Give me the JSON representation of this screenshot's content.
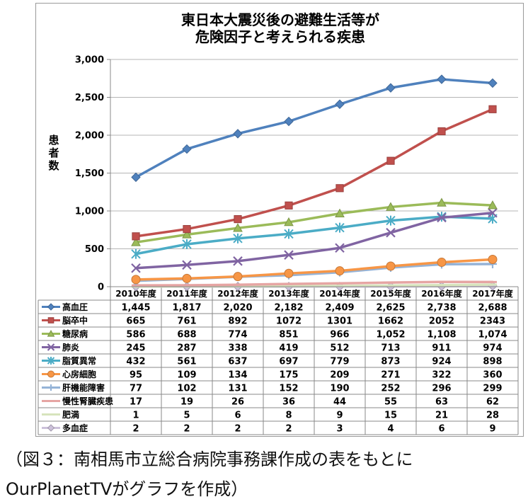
{
  "chart_data": {
    "type": "line",
    "title_lines": [
      "東日本大震災後の避難生活等が",
      "危険因子と考えられる疾患"
    ],
    "ylabel": "患者数",
    "ylim": [
      0,
      3000
    ],
    "yticks": [
      "0",
      "500",
      "1,000",
      "1,500",
      "2,000",
      "2,500",
      "3,000"
    ],
    "categories": [
      "2010年度",
      "2011年度",
      "2012年度",
      "2013年度",
      "2014年度",
      "2015年度",
      "2016年度",
      "2017年度"
    ],
    "grid": "horizontal",
    "legend": "data-table-below",
    "series": [
      {
        "name": "高血圧",
        "color": "#4f81bd",
        "marker": "diamond",
        "values": [
          1445,
          1817,
          2020,
          2182,
          2409,
          2625,
          2738,
          2688
        ],
        "labels": [
          "1,445",
          "1,817",
          "2,020",
          "2,182",
          "2,409",
          "2,625",
          "2,738",
          "2,688"
        ]
      },
      {
        "name": "脳卒中",
        "color": "#c0504d",
        "marker": "square",
        "values": [
          665,
          761,
          892,
          1072,
          1301,
          1662,
          2052,
          2343
        ],
        "labels": [
          "665",
          "761",
          "892",
          "1072",
          "1301",
          "1662",
          "2052",
          "2343"
        ]
      },
      {
        "name": "糖尿病",
        "color": "#9bbb59",
        "marker": "triangle",
        "values": [
          586,
          688,
          774,
          851,
          966,
          1052,
          1108,
          1074
        ],
        "labels": [
          "586",
          "688",
          "774",
          "851",
          "966",
          "1,052",
          "1,108",
          "1,074"
        ]
      },
      {
        "name": "肺炎",
        "color": "#8064a2",
        "marker": "x",
        "values": [
          245,
          287,
          338,
          419,
          512,
          713,
          911,
          974
        ],
        "labels": [
          "245",
          "287",
          "338",
          "419",
          "512",
          "713",
          "911",
          "974"
        ]
      },
      {
        "name": "脂質異常",
        "color": "#4bacc6",
        "marker": "star",
        "values": [
          432,
          561,
          637,
          697,
          779,
          873,
          924,
          898
        ],
        "labels": [
          "432",
          "561",
          "637",
          "697",
          "779",
          "873",
          "924",
          "898"
        ]
      },
      {
        "name": "心房細胞",
        "color": "#f79646",
        "marker": "circle",
        "values": [
          95,
          109,
          134,
          175,
          209,
          271,
          322,
          360
        ],
        "labels": [
          "95",
          "109",
          "134",
          "175",
          "209",
          "271",
          "322",
          "360"
        ]
      },
      {
        "name": "肝機能障害",
        "color": "#95b3d7",
        "marker": "plus",
        "values": [
          77,
          102,
          131,
          152,
          190,
          252,
          296,
          299
        ],
        "labels": [
          "77",
          "102",
          "131",
          "152",
          "190",
          "252",
          "296",
          "299"
        ]
      },
      {
        "name": "慢性腎臓疾患",
        "color": "#e6a5a3",
        "marker": "dash",
        "values": [
          17,
          19,
          26,
          36,
          44,
          55,
          63,
          62
        ],
        "labels": [
          "17",
          "19",
          "26",
          "36",
          "44",
          "55",
          "63",
          "62"
        ]
      },
      {
        "name": "肥満",
        "color": "#d7e4bd",
        "marker": "dash",
        "values": [
          1,
          5,
          6,
          8,
          9,
          15,
          21,
          28
        ],
        "labels": [
          "1",
          "5",
          "6",
          "8",
          "9",
          "15",
          "21",
          "28"
        ]
      },
      {
        "name": "多血症",
        "color": "#ccc1da",
        "marker": "diamond",
        "values": [
          2,
          2,
          2,
          2,
          3,
          4,
          6,
          9
        ],
        "labels": [
          "2",
          "2",
          "2",
          "2",
          "3",
          "4",
          "6",
          "9"
        ]
      }
    ]
  },
  "caption_lines": [
    "（図３：南相馬市立総合病院事務課作成の表をもとに",
    "OurPlanetTVがグラフを作成）"
  ]
}
